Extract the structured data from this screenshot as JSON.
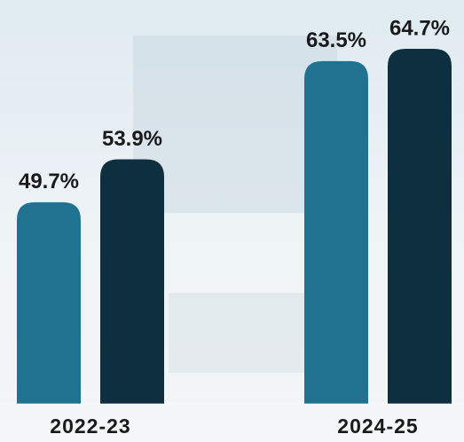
{
  "chart_data": {
    "type": "bar",
    "categories": [
      "2022-23",
      "2024-25"
    ],
    "series": [
      {
        "color": "#1f7391",
        "values": [
          49.7,
          63.5
        ],
        "value_labels": [
          "49.7%",
          "63.5%"
        ]
      },
      {
        "color": "#0d2f40",
        "values": [
          53.9,
          64.7
        ],
        "value_labels": [
          "53.9%",
          "64.7%"
        ]
      }
    ],
    "ylim": [
      30,
      66
    ]
  }
}
